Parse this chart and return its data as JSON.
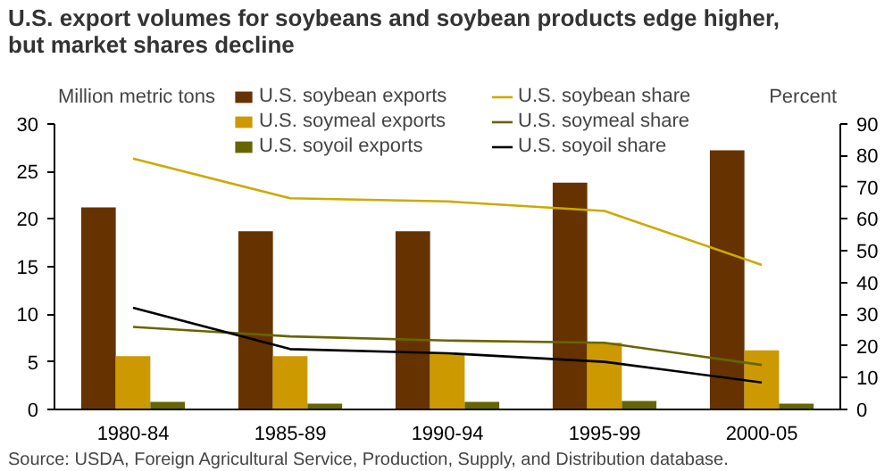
{
  "chart_data": {
    "type": "bar",
    "title": "U.S. export volumes for soybeans and soybean products edge higher, but market shares decline",
    "ylabel": "Million metric tons",
    "y2label": "Percent",
    "categories": [
      "1980-84",
      "1985-89",
      "1990-94",
      "1995-99",
      "2000-05"
    ],
    "series": [
      {
        "name": "U.S. soybean exports",
        "color": "#663300",
        "values": [
          21.2,
          18.7,
          18.7,
          23.8,
          27.2
        ]
      },
      {
        "name": "U.S. soymeal exports",
        "color": "#cc9900",
        "values": [
          5.6,
          5.6,
          5.9,
          7.0,
          6.2
        ]
      },
      {
        "name": "U.S. soyoil exports",
        "color": "#666600",
        "values": [
          0.8,
          0.6,
          0.8,
          0.9,
          0.6
        ]
      },
      {
        "name": "U.S. soybean share",
        "type": "line",
        "axis": "y2",
        "color": "#ccaa00",
        "values": [
          79,
          66.5,
          65.5,
          62.5,
          45.5
        ]
      },
      {
        "name": "U.S. soymeal share",
        "type": "line",
        "axis": "y2",
        "color": "#666600",
        "values": [
          26,
          23,
          21.7,
          21,
          14
        ]
      },
      {
        "name": "U.S. soyoil share",
        "type": "line",
        "axis": "y2",
        "color": "#000000",
        "values": [
          32,
          19,
          17.7,
          15,
          8.5
        ]
      }
    ],
    "ylim": [
      0,
      30
    ],
    "yticks": [
      0,
      5,
      10,
      15,
      20,
      25,
      30
    ],
    "y2lim": [
      0,
      90
    ],
    "y2ticks": [
      0,
      10,
      20,
      30,
      40,
      50,
      60,
      70,
      80,
      90
    ],
    "grid": false,
    "legend": "top",
    "marker": "none",
    "line_style": "solid",
    "annotations": [
      "Source: USDA, Foreign Agricultural Service, Production, Supply, and Distribution database."
    ]
  }
}
